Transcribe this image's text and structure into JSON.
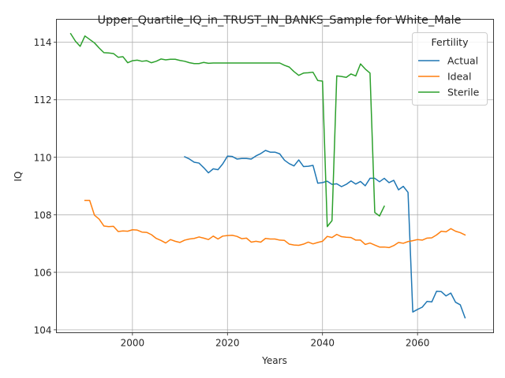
{
  "chart_data": {
    "type": "line",
    "title": "Upper_Quartile_IQ_in_TRUST_IN_BANKS_Sample for White_Male",
    "xlabel": "Years",
    "ylabel": "IQ",
    "xlim": [
      1984,
      2076
    ],
    "ylim": [
      103.9,
      114.8
    ],
    "xticks": [
      2000,
      2020,
      2040,
      2060
    ],
    "yticks": [
      104,
      106,
      108,
      110,
      112,
      114
    ],
    "grid": true,
    "legend": {
      "title": "Fertility",
      "placement": "top-right"
    },
    "series": [
      {
        "name": "Actual",
        "color": "#1f77b4",
        "x": [
          2011,
          2012,
          2013,
          2014,
          2015,
          2016,
          2017,
          2018,
          2019,
          2020,
          2021,
          2022,
          2023,
          2024,
          2025,
          2026,
          2027,
          2028,
          2029,
          2030,
          2031,
          2032,
          2033,
          2034,
          2035,
          2036,
          2037,
          2038,
          2039,
          2040,
          2041,
          2042,
          2043,
          2044,
          2045,
          2046,
          2047,
          2048,
          2049,
          2050,
          2051,
          2052,
          2053,
          2054,
          2055,
          2056,
          2057,
          2058,
          2059,
          2060,
          2061,
          2062,
          2063,
          2064,
          2065,
          2066,
          2067,
          2068,
          2069,
          2070
        ],
        "y": [
          110.02,
          109.94,
          109.83,
          109.8,
          109.64,
          109.46,
          109.6,
          109.57,
          109.77,
          110.04,
          110.03,
          109.94,
          109.96,
          109.96,
          109.94,
          110.05,
          110.13,
          110.24,
          110.18,
          110.18,
          110.12,
          109.9,
          109.78,
          109.7,
          109.91,
          109.68,
          109.69,
          109.72,
          109.1,
          109.12,
          109.17,
          109.06,
          109.08,
          108.98,
          109.06,
          109.18,
          109.07,
          109.16,
          109.01,
          109.27,
          109.27,
          109.15,
          109.27,
          109.12,
          109.2,
          108.87,
          108.99,
          108.78,
          104.62,
          104.71,
          104.79,
          104.99,
          104.97,
          105.34,
          105.33,
          105.18,
          105.28,
          104.96,
          104.87,
          104.42
        ]
      },
      {
        "name": "Ideal",
        "color": "#ff7f0e",
        "x": [
          1990,
          1991,
          1992,
          1993,
          1994,
          1995,
          1996,
          1997,
          1998,
          1999,
          2000,
          2001,
          2002,
          2003,
          2004,
          2005,
          2006,
          2007,
          2008,
          2009,
          2010,
          2011,
          2012,
          2013,
          2014,
          2015,
          2016,
          2017,
          2018,
          2019,
          2020,
          2021,
          2022,
          2023,
          2024,
          2025,
          2026,
          2027,
          2028,
          2029,
          2030,
          2031,
          2032,
          2033,
          2034,
          2035,
          2036,
          2037,
          2038,
          2039,
          2040,
          2041,
          2042,
          2043,
          2044,
          2045,
          2046,
          2047,
          2048,
          2049,
          2050,
          2051,
          2052,
          2053,
          2054,
          2055,
          2056,
          2057,
          2058,
          2059,
          2060,
          2061,
          2062,
          2063,
          2064,
          2065,
          2066,
          2067,
          2068,
          2069,
          2070
        ],
        "y": [
          108.5,
          108.5,
          107.99,
          107.85,
          107.61,
          107.59,
          107.6,
          107.42,
          107.44,
          107.43,
          107.48,
          107.47,
          107.4,
          107.39,
          107.31,
          107.18,
          107.11,
          107.02,
          107.14,
          107.08,
          107.04,
          107.12,
          107.16,
          107.18,
          107.23,
          107.19,
          107.14,
          107.26,
          107.16,
          107.26,
          107.28,
          107.29,
          107.25,
          107.17,
          107.19,
          107.05,
          107.08,
          107.05,
          107.18,
          107.16,
          107.16,
          107.12,
          107.11,
          106.98,
          106.95,
          106.94,
          106.98,
          107.05,
          106.99,
          107.04,
          107.08,
          107.25,
          107.21,
          107.32,
          107.24,
          107.22,
          107.21,
          107.12,
          107.12,
          106.97,
          107.02,
          106.95,
          106.88,
          106.88,
          106.86,
          106.93,
          107.04,
          107.01,
          107.07,
          107.1,
          107.14,
          107.12,
          107.19,
          107.2,
          107.3,
          107.43,
          107.41,
          107.52,
          107.43,
          107.38,
          107.3
        ]
      },
      {
        "name": "Sterile",
        "color": "#2ca02c",
        "x": [
          1987,
          1988,
          1989,
          1990,
          1991,
          1992,
          1993,
          1994,
          1995,
          1996,
          1997,
          1998,
          1999,
          2000,
          2001,
          2002,
          2003,
          2004,
          2005,
          2006,
          2007,
          2008,
          2009,
          2010,
          2011,
          2012,
          2013,
          2014,
          2015,
          2016,
          2017,
          2018,
          2019,
          2020,
          2021,
          2022,
          2023,
          2024,
          2025,
          2026,
          2027,
          2028,
          2029,
          2030,
          2031,
          2032,
          2033,
          2034,
          2035,
          2036,
          2037,
          2038,
          2039,
          2040,
          2041,
          2042,
          2043,
          2044,
          2045,
          2046,
          2047,
          2048,
          2049,
          2050,
          2051,
          2052,
          2053
        ],
        "y": [
          114.3,
          114.04,
          113.86,
          114.22,
          114.1,
          113.98,
          113.8,
          113.64,
          113.63,
          113.61,
          113.48,
          113.5,
          113.29,
          113.36,
          113.38,
          113.34,
          113.36,
          113.29,
          113.34,
          113.42,
          113.39,
          113.41,
          113.41,
          113.37,
          113.34,
          113.29,
          113.26,
          113.26,
          113.3,
          113.27,
          113.28,
          113.28,
          113.28,
          113.28,
          113.28,
          113.28,
          113.28,
          113.28,
          113.28,
          113.28,
          113.28,
          113.28,
          113.28,
          113.28,
          113.28,
          113.2,
          113.14,
          112.98,
          112.85,
          112.93,
          112.94,
          112.96,
          112.67,
          112.65,
          107.59,
          107.8,
          112.83,
          112.81,
          112.78,
          112.9,
          112.83,
          113.25,
          113.07,
          112.93,
          108.08,
          107.96,
          108.3
        ]
      }
    ]
  }
}
